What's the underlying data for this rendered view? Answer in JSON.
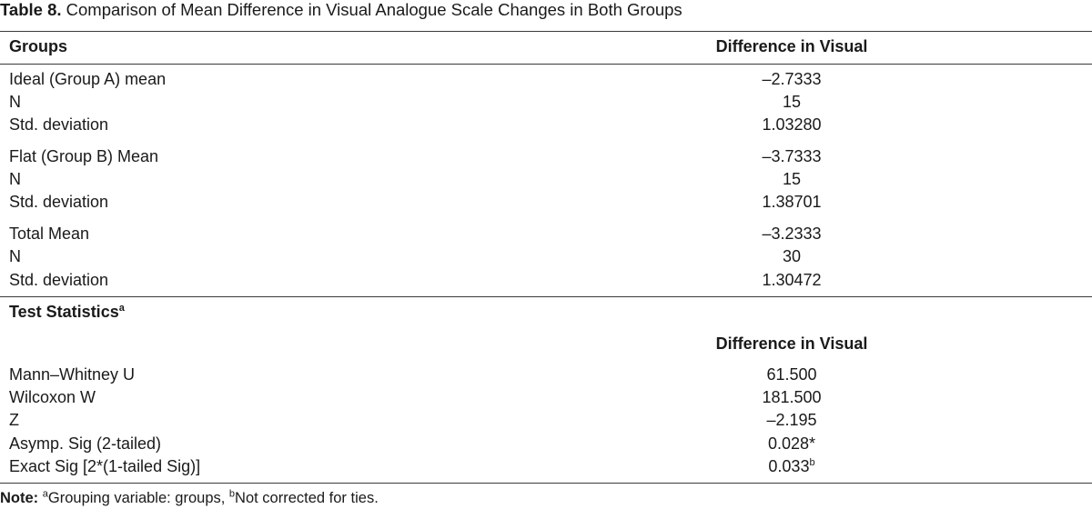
{
  "caption": {
    "label": "Table 8.",
    "text": " Comparison of Mean Difference in Visual Analogue Scale Changes in Both Groups"
  },
  "descriptives": {
    "header": {
      "groups": "Groups",
      "difference": "Difference in Visual"
    },
    "rows": [
      {
        "label": "Ideal (Group A) mean",
        "value": "–2.7333"
      },
      {
        "label": "N",
        "value": "15"
      },
      {
        "label": "Std. deviation",
        "value": "1.03280"
      },
      {
        "label": "Flat (Group B) Mean",
        "value": "–3.7333"
      },
      {
        "label": "N",
        "value": "15"
      },
      {
        "label": "Std. deviation",
        "value": "1.38701"
      },
      {
        "label": "Total Mean",
        "value": "–3.2333"
      },
      {
        "label": "N",
        "value": "30"
      },
      {
        "label": "Std. deviation",
        "value": "1.30472"
      }
    ]
  },
  "test_statistics": {
    "title": "Test Statistics",
    "title_sup": "a",
    "header": "Difference in Visual",
    "rows": [
      {
        "label": "Mann–Whitney U",
        "value": "61.500",
        "sup": ""
      },
      {
        "label": "Wilcoxon W",
        "value": "181.500",
        "sup": ""
      },
      {
        "label": "Z",
        "value": "–2.195",
        "sup": ""
      },
      {
        "label": "Asymp. Sig (2-tailed)",
        "value": "0.028*",
        "sup": ""
      },
      {
        "label": "Exact Sig [2*(1-tailed Sig)]",
        "value": "0.033",
        "sup": "b"
      }
    ]
  },
  "note": {
    "label": "Note:",
    "sup_a": "a",
    "text_a": "Grouping variable: groups, ",
    "sup_b": "b",
    "text_b": "Not corrected for ties."
  }
}
